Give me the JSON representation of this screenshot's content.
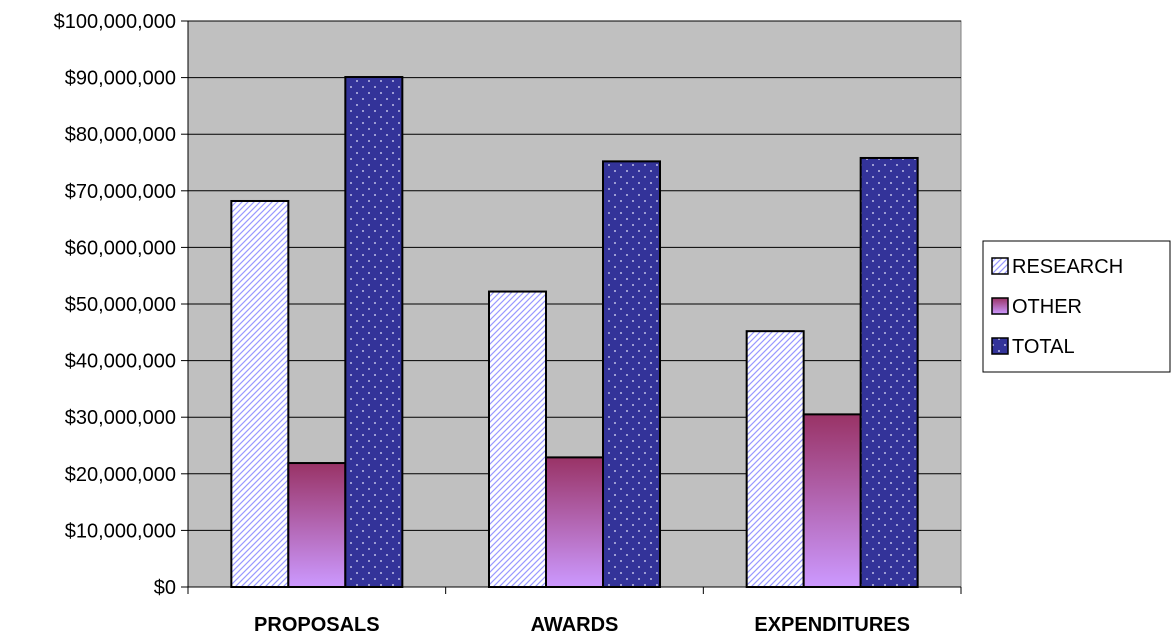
{
  "chart_data": {
    "type": "bar",
    "title": "",
    "xlabel": "",
    "ylabel": "",
    "categories": [
      "PROPOSALS",
      "AWARDS",
      "EXPENDITURES"
    ],
    "series": [
      {
        "name": "RESEARCH",
        "values": [
          68200000,
          52200000,
          45200000
        ],
        "pattern": "diagonal-hatch",
        "color": "#ccccff"
      },
      {
        "name": "OTHER",
        "values": [
          21900000,
          22900000,
          30500000
        ],
        "pattern": "vertical-gradient",
        "color_top": "#993366",
        "color_bottom": "#cc99ff"
      },
      {
        "name": "TOTAL",
        "values": [
          90100000,
          75200000,
          75800000
        ],
        "pattern": "dotted",
        "color": "#333399"
      }
    ],
    "ylim": [
      0,
      100000000
    ],
    "y_ticks": [
      0,
      10000000,
      20000000,
      30000000,
      40000000,
      50000000,
      60000000,
      70000000,
      80000000,
      90000000,
      100000000
    ],
    "y_tick_labels": [
      "$0",
      "$10,000,000",
      "$20,000,000",
      "$30,000,000",
      "$40,000,000",
      "$50,000,000",
      "$60,000,000",
      "$70,000,000",
      "$80,000,000",
      "$90,000,000",
      "$100,000,000"
    ],
    "grid": true,
    "legend_position": "right",
    "plot_background": "#c0c0c0",
    "gridline_color": "#000000"
  }
}
